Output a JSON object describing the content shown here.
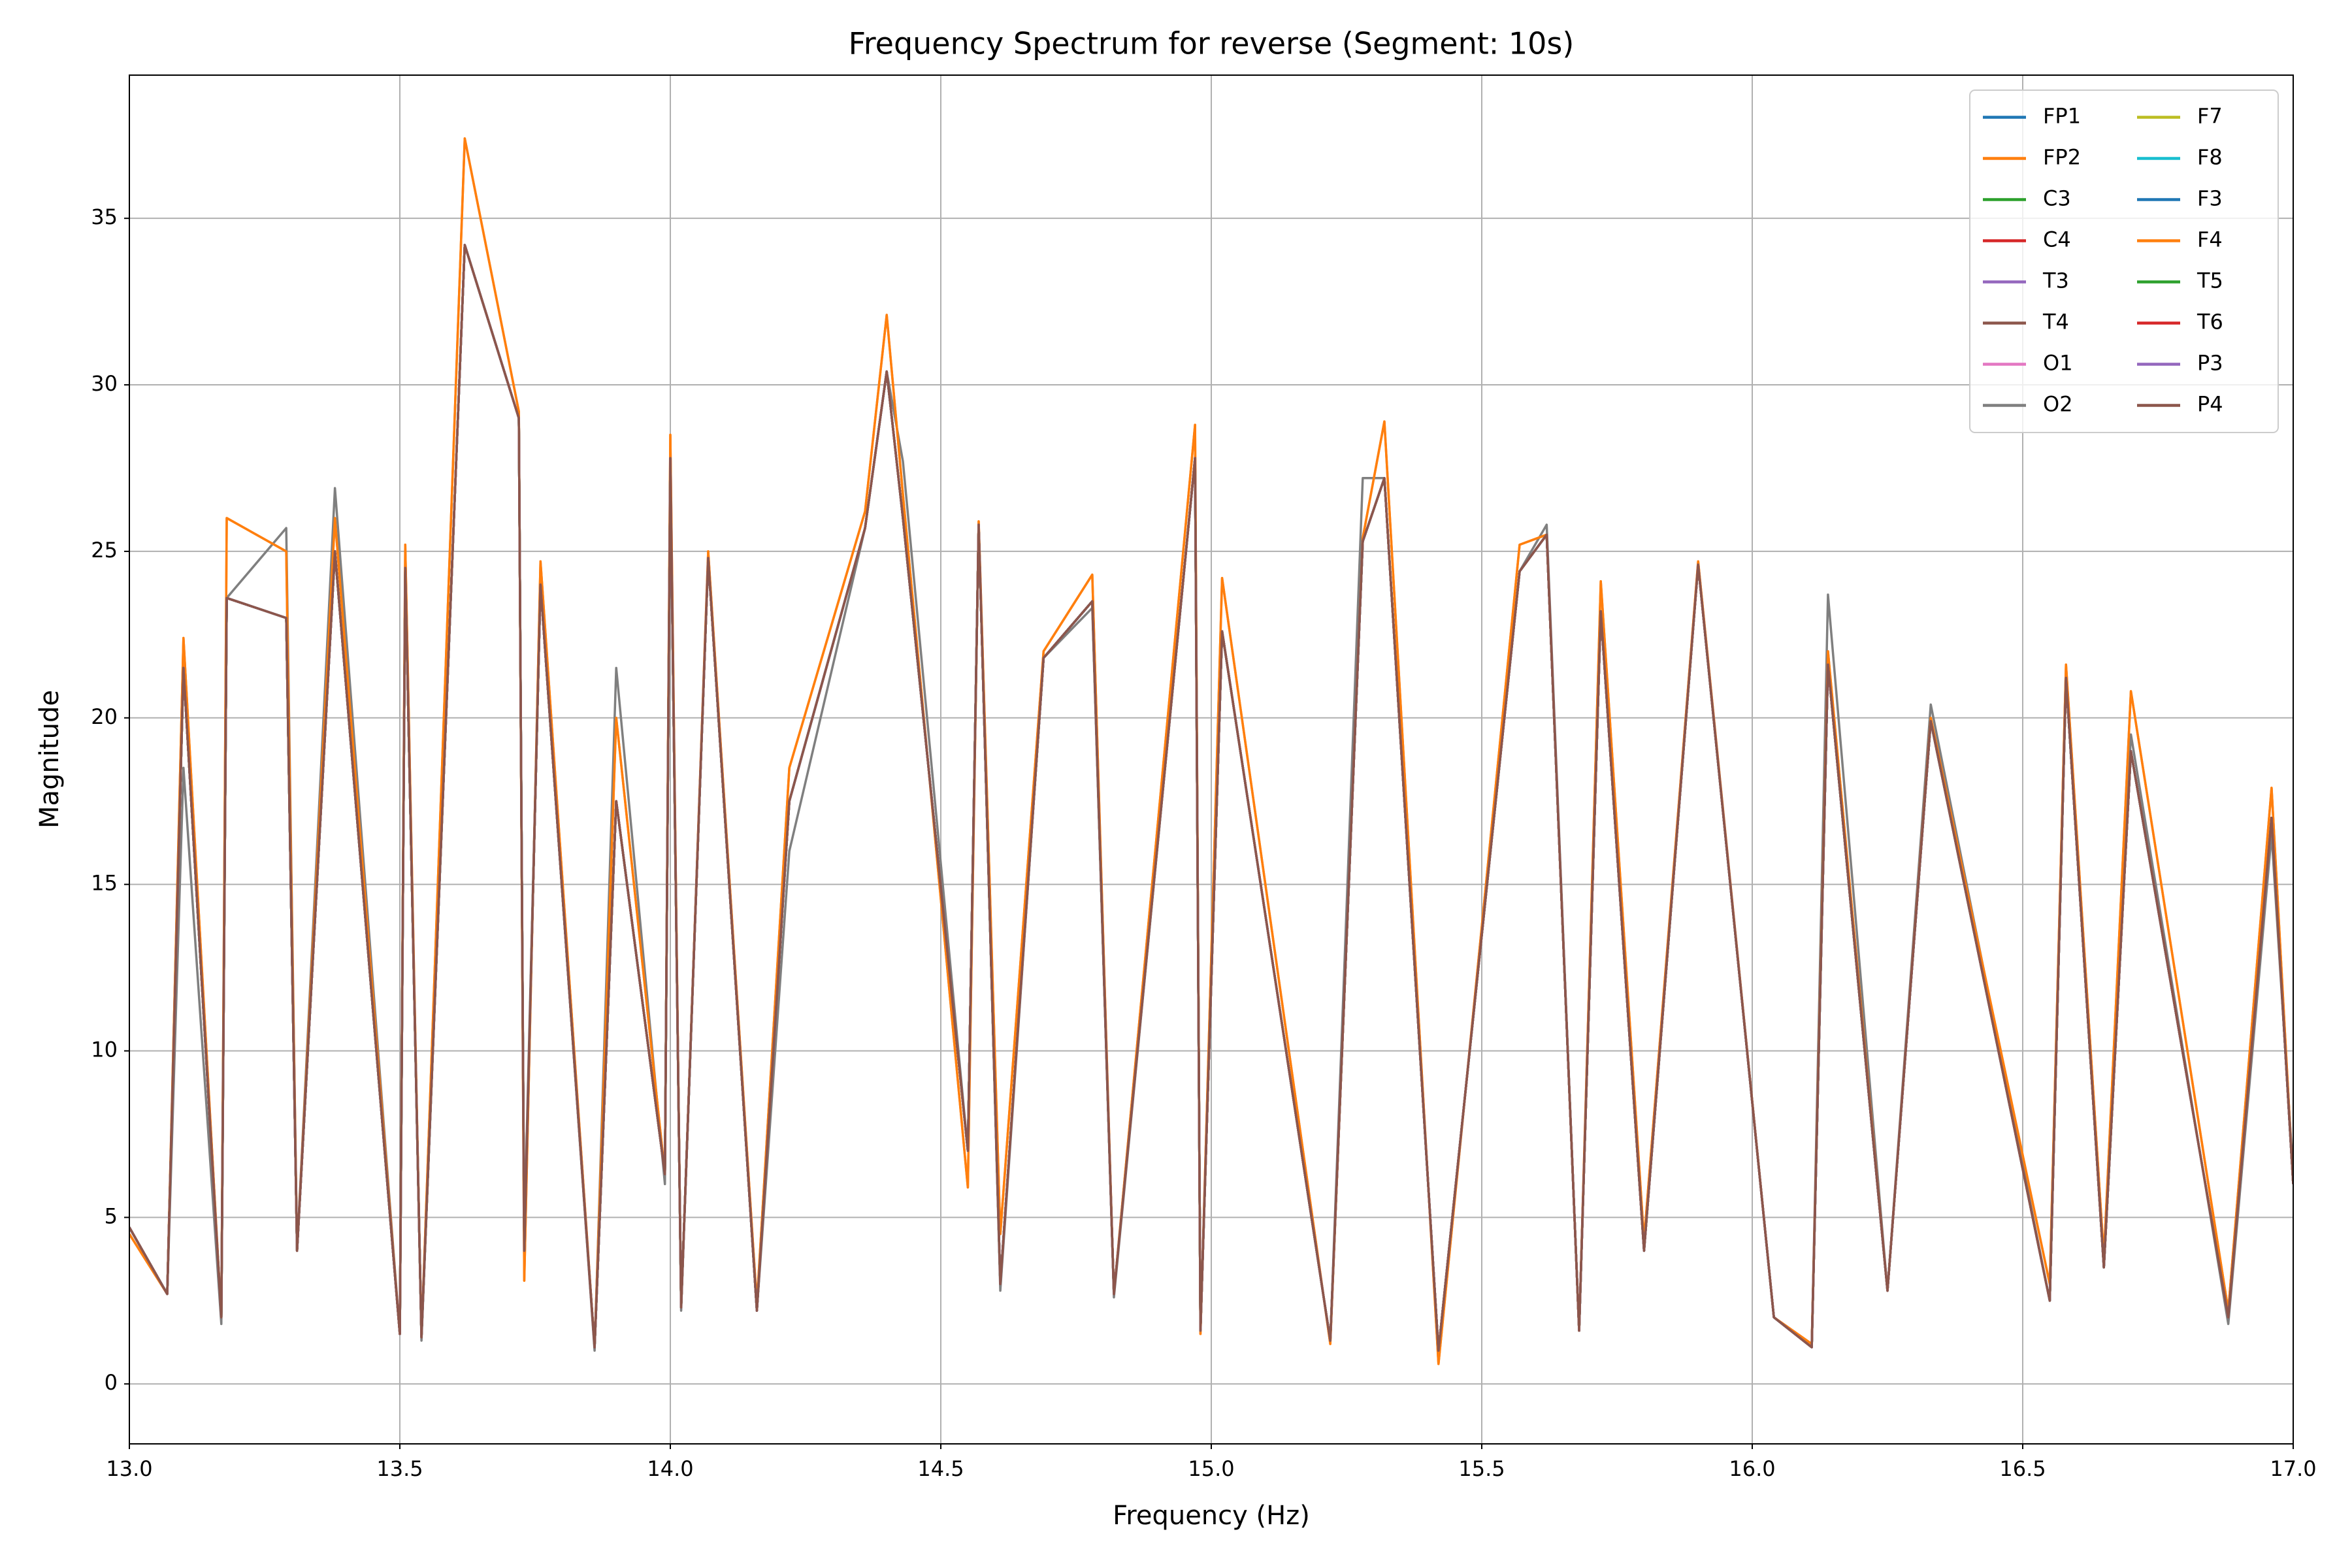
{
  "chart_data": {
    "type": "line",
    "title": "Frequency Spectrum for reverse (Segment: 10s)",
    "xlabel": "Frequency (Hz)",
    "ylabel": "Magnitude",
    "x": [
      13.0,
      13.07,
      13.1,
      13.17,
      13.18,
      13.29,
      13.31,
      13.38,
      13.5,
      13.51,
      13.54,
      13.62,
      13.72,
      13.73,
      13.76,
      13.86,
      13.9,
      13.99,
      14.0,
      14.02,
      14.07,
      14.16,
      14.22,
      14.36,
      14.4,
      14.43,
      14.55,
      14.57,
      14.61,
      14.69,
      14.78,
      14.82,
      14.97,
      14.98,
      15.02,
      15.22,
      15.28,
      15.32,
      15.42,
      15.57,
      15.62,
      15.68,
      15.72,
      15.8,
      15.9,
      16.04,
      16.11,
      16.14,
      16.25,
      16.33,
      16.55,
      16.58,
      16.65,
      16.7,
      16.88,
      16.96,
      17.0
    ],
    "series": [
      {
        "name": "FP1",
        "color": "#1f77b4",
        "values": [
          4.7,
          2.7,
          21.5,
          2,
          23.6,
          23,
          4,
          25,
          1.5,
          24.5,
          1.4,
          34.2,
          29,
          4,
          24,
          1.1,
          17.5,
          6.3,
          27.8,
          2.3,
          24.8,
          2.2,
          17.5,
          25.7,
          30.4,
          26,
          7,
          25.8,
          3,
          21.8,
          23.5,
          2.7,
          27.8,
          1.6,
          22.6,
          1.3,
          25.3,
          27.2,
          1,
          24.4,
          25.5,
          1.6,
          23.2,
          4,
          24.6,
          2,
          1.1,
          21.6,
          2.8,
          19.9,
          2.5,
          21.2,
          3.5,
          19,
          2,
          17,
          6
        ]
      },
      {
        "name": "FP2",
        "color": "#ff7f0e",
        "values": [
          4.5,
          2.7,
          22.4,
          2,
          26,
          25,
          4,
          26,
          1.5,
          25.2,
          1.4,
          37.4,
          29.2,
          3.1,
          24.7,
          1.1,
          20,
          6.3,
          28.5,
          2.3,
          25,
          2.4,
          18.5,
          26.2,
          32.1,
          26.7,
          5.9,
          25.9,
          4.5,
          22,
          24.3,
          2.7,
          28.8,
          1.5,
          24.2,
          1.2,
          25.4,
          28.9,
          0.6,
          25.2,
          25.5,
          1.6,
          24.1,
          4.3,
          24.7,
          2,
          1.2,
          22,
          2.8,
          20,
          3,
          21.6,
          3.8,
          20.8,
          2.2,
          17.9,
          6
        ]
      },
      {
        "name": "C3",
        "color": "#2ca02c",
        "values": [
          4.7,
          2.7,
          21.5,
          2,
          23.6,
          23,
          4,
          25,
          1.5,
          24.5,
          1.4,
          34.2,
          29,
          4,
          24,
          1.1,
          17.5,
          6.3,
          27.8,
          2.3,
          24.8,
          2.2,
          17.5,
          25.7,
          30.4,
          26,
          7,
          25.8,
          3,
          21.8,
          23.5,
          2.7,
          27.8,
          1.6,
          22.6,
          1.3,
          25.3,
          27.2,
          1,
          24.4,
          25.5,
          1.6,
          23.2,
          4,
          24.6,
          2,
          1.1,
          21.6,
          2.8,
          19.9,
          2.5,
          21.2,
          3.5,
          19,
          2,
          17,
          6
        ]
      },
      {
        "name": "C4",
        "color": "#d62728",
        "values": [
          4.7,
          2.7,
          21.5,
          2,
          23.6,
          23,
          4,
          25,
          1.5,
          24.5,
          1.4,
          34.2,
          29,
          4,
          24,
          1.1,
          17.5,
          6.3,
          27.8,
          2.3,
          24.8,
          2.2,
          17.5,
          25.7,
          30.4,
          26,
          7,
          25.8,
          3,
          21.8,
          23.5,
          2.7,
          27.8,
          1.6,
          22.6,
          1.3,
          25.3,
          27.2,
          1,
          24.4,
          25.5,
          1.6,
          23.2,
          4,
          24.6,
          2,
          1.1,
          21.6,
          2.8,
          19.9,
          2.5,
          21.2,
          3.5,
          19,
          2,
          17,
          6
        ]
      },
      {
        "name": "T3",
        "color": "#9467bd",
        "values": [
          4.7,
          2.7,
          21.5,
          2,
          23.6,
          23,
          4,
          25,
          1.5,
          24.5,
          1.4,
          34.2,
          29,
          4,
          24,
          1.1,
          17.5,
          6.3,
          27.8,
          2.3,
          24.8,
          2.2,
          17.5,
          25.7,
          30.4,
          26,
          7,
          25.8,
          3,
          21.8,
          23.5,
          2.7,
          27.8,
          1.6,
          22.6,
          1.3,
          25.3,
          27.2,
          1,
          24.4,
          25.5,
          1.6,
          23.2,
          4,
          24.6,
          2,
          1.1,
          21.6,
          2.8,
          19.9,
          2.5,
          21.2,
          3.5,
          19,
          2,
          17,
          6
        ]
      },
      {
        "name": "T4",
        "color": "#8c564b",
        "values": [
          4.7,
          2.7,
          21.5,
          2,
          23.6,
          23,
          4,
          25,
          1.5,
          24.5,
          1.4,
          34.2,
          29,
          4,
          24,
          1.1,
          17.5,
          6.3,
          27.8,
          2.3,
          24.8,
          2.2,
          17.5,
          25.7,
          30.4,
          26,
          7,
          25.8,
          3,
          21.8,
          23.5,
          2.7,
          27.8,
          1.6,
          22.6,
          1.3,
          25.3,
          27.2,
          1,
          24.4,
          25.5,
          1.6,
          23.2,
          4,
          24.6,
          2,
          1.1,
          21.6,
          2.8,
          19.9,
          2.5,
          21.2,
          3.5,
          19,
          2,
          17,
          6
        ]
      },
      {
        "name": "O1",
        "color": "#e377c2",
        "values": [
          4.7,
          2.7,
          21.5,
          2,
          23.6,
          23,
          4,
          25,
          1.5,
          24.5,
          1.4,
          34.2,
          29,
          4,
          24,
          1.1,
          17.5,
          6.3,
          27.8,
          2.3,
          24.8,
          2.2,
          17.5,
          25.7,
          30.4,
          26,
          7,
          25.8,
          3,
          21.8,
          23.5,
          2.7,
          27.8,
          1.6,
          22.6,
          1.3,
          25.3,
          27.2,
          1,
          24.4,
          25.5,
          1.6,
          23.2,
          4,
          24.6,
          2,
          1.1,
          21.6,
          2.8,
          19.9,
          2.5,
          21.2,
          3.5,
          19,
          2,
          17,
          6
        ]
      },
      {
        "name": "O2",
        "color": "#7f7f7f",
        "values": [
          4.7,
          2.7,
          18.5,
          1.8,
          23.6,
          25.7,
          4,
          26.9,
          1.5,
          24.5,
          1.3,
          34.2,
          29,
          4.5,
          24,
          1,
          21.5,
          6,
          27.8,
          2.2,
          24.8,
          2.2,
          16,
          25.7,
          30.4,
          27.7,
          7,
          25.8,
          2.8,
          21.8,
          23.3,
          2.6,
          27.8,
          1.7,
          22.6,
          1.3,
          27.2,
          27.2,
          1,
          24.4,
          25.8,
          1.6,
          23.2,
          4.2,
          24.6,
          2,
          1.1,
          23.7,
          2.8,
          20.4,
          2.5,
          21.2,
          3.5,
          19.5,
          1.8,
          16.5,
          6.3
        ]
      },
      {
        "name": "F7",
        "color": "#bcbd22",
        "values": [
          4.7,
          2.7,
          21.5,
          2,
          23.6,
          23,
          4,
          25,
          1.5,
          24.5,
          1.4,
          34.2,
          29,
          4,
          24,
          1.1,
          17.5,
          6.3,
          27.8,
          2.3,
          24.8,
          2.2,
          17.5,
          25.7,
          30.4,
          26,
          7,
          25.8,
          3,
          21.8,
          23.5,
          2.7,
          27.8,
          1.6,
          22.6,
          1.3,
          25.3,
          27.2,
          1,
          24.4,
          25.5,
          1.6,
          23.2,
          4,
          24.6,
          2,
          1.1,
          21.6,
          2.8,
          19.9,
          2.5,
          21.2,
          3.5,
          19,
          2,
          17,
          6
        ]
      },
      {
        "name": "F8",
        "color": "#17becf",
        "values": [
          4.7,
          2.7,
          21.5,
          2,
          23.6,
          23,
          4,
          25,
          1.5,
          24.5,
          1.4,
          34.2,
          29,
          4,
          24,
          1.1,
          17.5,
          6.3,
          27.8,
          2.3,
          24.8,
          2.2,
          17.5,
          25.7,
          30.4,
          26,
          7,
          25.8,
          3,
          21.8,
          23.5,
          2.7,
          27.8,
          1.6,
          22.6,
          1.3,
          25.3,
          27.2,
          1,
          24.4,
          25.5,
          1.6,
          23.2,
          4,
          24.6,
          2,
          1.1,
          21.6,
          2.8,
          19.9,
          2.5,
          21.2,
          3.5,
          19,
          2,
          17,
          6
        ]
      },
      {
        "name": "F3",
        "color": "#1f77b4",
        "values": [
          4.7,
          2.7,
          21.5,
          2,
          23.6,
          23,
          4,
          25,
          1.5,
          24.5,
          1.4,
          34.2,
          29,
          4,
          24,
          1.1,
          17.5,
          6.3,
          27.8,
          2.3,
          24.8,
          2.2,
          17.5,
          25.7,
          30.4,
          26,
          7,
          25.8,
          3,
          21.8,
          23.5,
          2.7,
          27.8,
          1.6,
          22.6,
          1.3,
          25.3,
          27.2,
          1,
          24.4,
          25.5,
          1.6,
          23.2,
          4,
          24.6,
          2,
          1.1,
          21.6,
          2.8,
          19.9,
          2.5,
          21.2,
          3.5,
          19,
          2,
          17,
          6
        ]
      },
      {
        "name": "F4",
        "color": "#ff7f0e",
        "values": [
          4.5,
          2.7,
          22.4,
          2,
          26,
          25,
          4,
          26,
          1.5,
          25.2,
          1.4,
          37.4,
          29.2,
          3.1,
          24.7,
          1.1,
          20,
          6.3,
          28.5,
          2.3,
          25,
          2.4,
          18.5,
          26.2,
          32.1,
          26.7,
          5.9,
          25.9,
          4.5,
          22,
          24.3,
          2.7,
          28.8,
          1.5,
          24.2,
          1.2,
          25.4,
          28.9,
          0.6,
          25.2,
          25.5,
          1.6,
          24.1,
          4.3,
          24.7,
          2,
          1.2,
          22,
          2.8,
          20,
          3,
          21.6,
          3.8,
          20.8,
          2.2,
          17.9,
          6
        ]
      },
      {
        "name": "T5",
        "color": "#2ca02c",
        "values": [
          4.7,
          2.7,
          21.5,
          2,
          23.6,
          23,
          4,
          25,
          1.5,
          24.5,
          1.4,
          34.2,
          29,
          4,
          24,
          1.1,
          17.5,
          6.3,
          27.8,
          2.3,
          24.8,
          2.2,
          17.5,
          25.7,
          30.4,
          26,
          7,
          25.8,
          3,
          21.8,
          23.5,
          2.7,
          27.8,
          1.6,
          22.6,
          1.3,
          25.3,
          27.2,
          1,
          24.4,
          25.5,
          1.6,
          23.2,
          4,
          24.6,
          2,
          1.1,
          21.6,
          2.8,
          19.9,
          2.5,
          21.2,
          3.5,
          19,
          2,
          17,
          6
        ]
      },
      {
        "name": "T6",
        "color": "#d62728",
        "values": [
          4.7,
          2.7,
          21.5,
          2,
          23.6,
          23,
          4,
          25,
          1.5,
          24.5,
          1.4,
          34.2,
          29,
          4,
          24,
          1.1,
          17.5,
          6.3,
          27.8,
          2.3,
          24.8,
          2.2,
          17.5,
          25.7,
          30.4,
          26,
          7,
          25.8,
          3,
          21.8,
          23.5,
          2.7,
          27.8,
          1.6,
          22.6,
          1.3,
          25.3,
          27.2,
          1,
          24.4,
          25.5,
          1.6,
          23.2,
          4,
          24.6,
          2,
          1.1,
          21.6,
          2.8,
          19.9,
          2.5,
          21.2,
          3.5,
          19,
          2,
          17,
          6
        ]
      },
      {
        "name": "P3",
        "color": "#9467bd",
        "values": [
          4.7,
          2.7,
          21.5,
          2,
          23.6,
          23,
          4,
          25,
          1.5,
          24.5,
          1.4,
          34.2,
          29,
          4,
          24,
          1.1,
          17.5,
          6.3,
          27.8,
          2.3,
          24.8,
          2.2,
          17.5,
          25.7,
          30.4,
          26,
          7,
          25.8,
          3,
          21.8,
          23.5,
          2.7,
          27.8,
          1.6,
          22.6,
          1.3,
          25.3,
          27.2,
          1,
          24.4,
          25.5,
          1.6,
          23.2,
          4,
          24.6,
          2,
          1.1,
          21.6,
          2.8,
          19.9,
          2.5,
          21.2,
          3.5,
          19,
          2,
          17,
          6
        ]
      },
      {
        "name": "P4",
        "color": "#8c564b",
        "values": [
          4.7,
          2.7,
          21.5,
          2,
          23.6,
          23,
          4,
          25,
          1.5,
          24.5,
          1.4,
          34.2,
          29,
          4,
          24,
          1.1,
          17.5,
          6.3,
          27.8,
          2.3,
          24.8,
          2.2,
          17.5,
          25.7,
          30.4,
          26,
          7,
          25.8,
          3,
          21.8,
          23.5,
          2.7,
          27.8,
          1.6,
          22.6,
          1.3,
          25.3,
          27.2,
          1,
          24.4,
          25.5,
          1.6,
          23.2,
          4,
          24.6,
          2,
          1.1,
          21.6,
          2.8,
          19.9,
          2.5,
          21.2,
          3.5,
          19,
          2,
          17,
          6
        ]
      }
    ],
    "xlim": [
      13,
      17
    ],
    "ylim": [
      -1.8,
      39.3
    ],
    "xticks": [
      {
        "value": 13,
        "label": "13.0"
      },
      13.5,
      {
        "value": 14,
        "label": "14.0"
      },
      14.5,
      {
        "value": 15,
        "label": "15.0"
      },
      15.5,
      {
        "value": 16,
        "label": "16.0"
      },
      16.5,
      {
        "value": 17,
        "label": "17.0"
      }
    ],
    "yticks": [
      0,
      5,
      10,
      15,
      20,
      25,
      30,
      35
    ],
    "grid": true,
    "legend": "upper right",
    "legend_columns": 2
  }
}
